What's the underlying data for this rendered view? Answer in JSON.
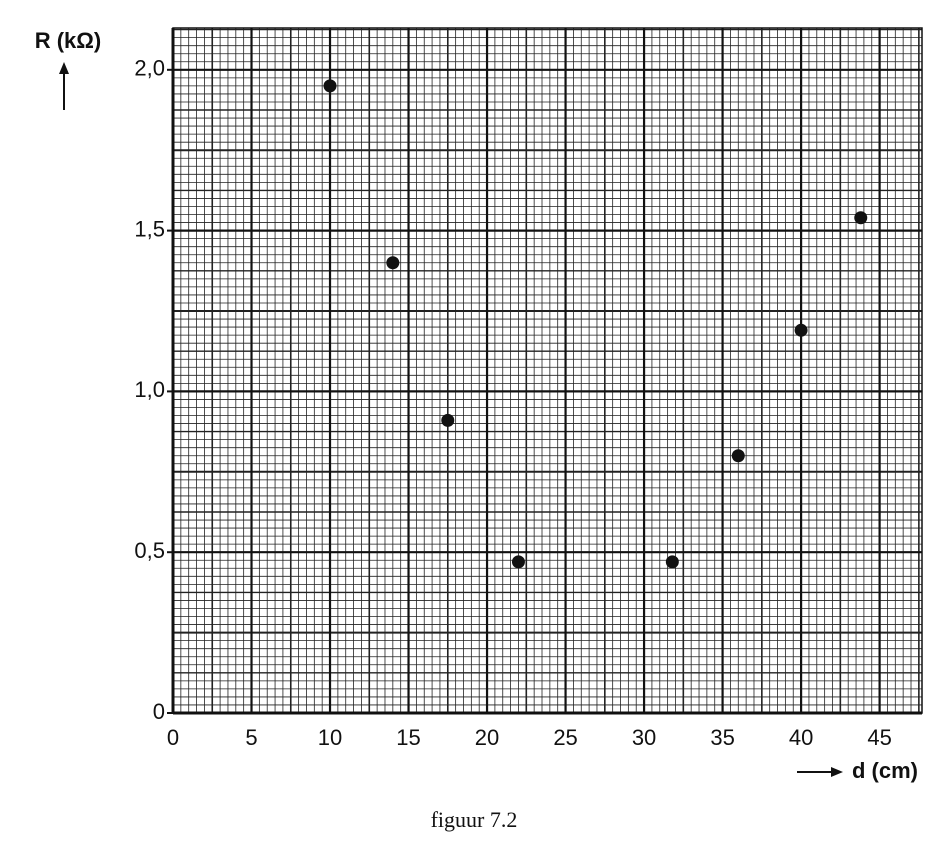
{
  "chart_data": {
    "type": "scatter",
    "caption": "figuur 7.2",
    "x_label": "d (cm)",
    "y_label": "R (kΩ)",
    "x": [
      10,
      14,
      17.5,
      22,
      31.8,
      36,
      40,
      43.8
    ],
    "values": [
      1.95,
      1.4,
      0.91,
      0.47,
      0.47,
      0.8,
      1.19,
      1.54
    ],
    "color": "#111111",
    "xlim": [
      0,
      47.7
    ],
    "ylim": [
      0,
      2.13
    ],
    "xticks": [
      0,
      5,
      10,
      15,
      20,
      25,
      30,
      35,
      40,
      45
    ],
    "yticks": [
      0,
      {
        "value": 0.5,
        "label": "0,5"
      },
      {
        "value": 1.0,
        "label": "1,0"
      },
      {
        "value": 1.5,
        "label": "1,5"
      },
      {
        "value": 2.0,
        "label": "2,0"
      }
    ],
    "grid": true
  }
}
